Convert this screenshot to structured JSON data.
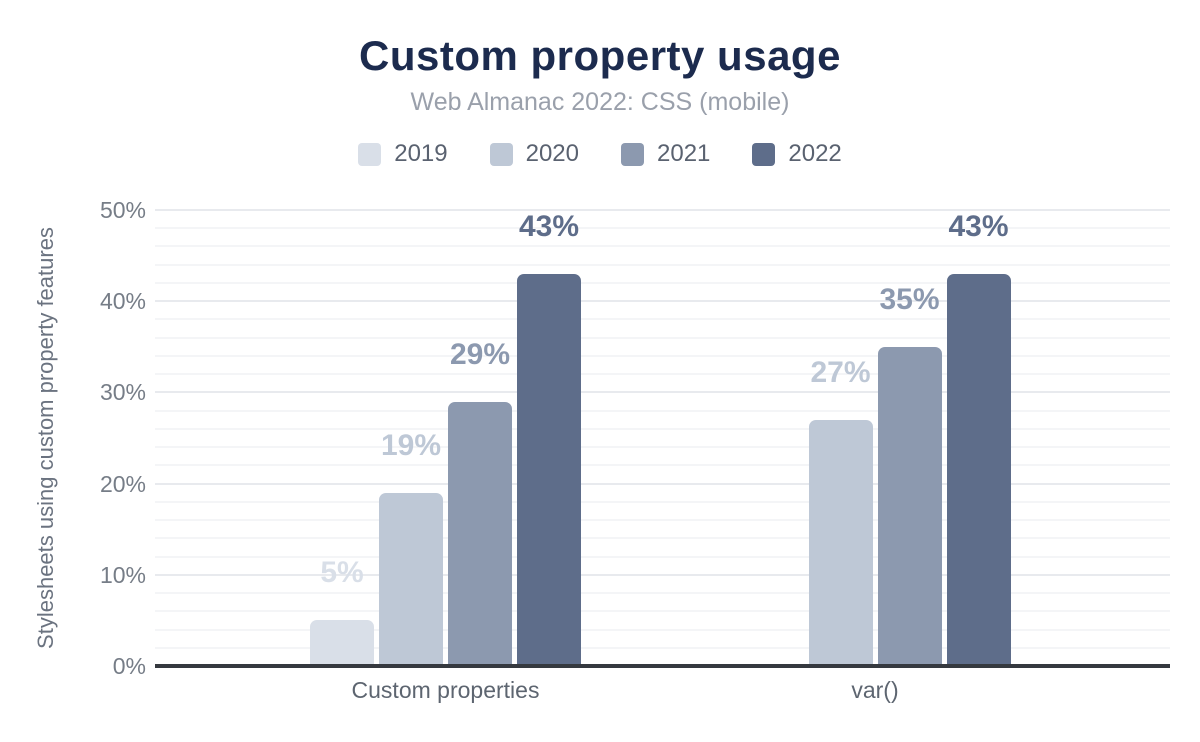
{
  "chart_data": {
    "type": "bar",
    "title": "Custom property usage",
    "subtitle": "Web Almanac 2022: CSS (mobile)",
    "ylabel": "Stylesheets using custom property features",
    "xlabel": "",
    "ylim": [
      0,
      50
    ],
    "y_major_ticks": [
      {
        "value": 0,
        "label": "0%"
      },
      {
        "value": 10,
        "label": "10%"
      },
      {
        "value": 20,
        "label": "20%"
      },
      {
        "value": 30,
        "label": "30%"
      },
      {
        "value": 40,
        "label": "40%"
      },
      {
        "value": 50,
        "label": "50%"
      }
    ],
    "minor_grid_step": 2,
    "grid": true,
    "legend_position": "top",
    "categories": [
      "Custom properties",
      "var()"
    ],
    "series": [
      {
        "name": "2019",
        "color": "#d9dfe8",
        "values": [
          5,
          null
        ],
        "labels": [
          "5%",
          null
        ]
      },
      {
        "name": "2020",
        "color": "#bec8d6",
        "values": [
          19,
          27
        ],
        "labels": [
          "19%",
          "27%"
        ]
      },
      {
        "name": "2021",
        "color": "#8c99af",
        "values": [
          29,
          35
        ],
        "labels": [
          "29%",
          "35%"
        ]
      },
      {
        "name": "2022",
        "color": "#5e6d8a",
        "values": [
          43,
          43
        ],
        "labels": [
          "43%",
          "43%"
        ]
      }
    ]
  },
  "colors": {
    "title_text": "#1c2b4e",
    "subtitle_text": "#9aa0ab",
    "legend_text": "#5a6270",
    "tick_text": "#767d87",
    "category_text": "#5d6570",
    "ylabel_text": "#6b7380",
    "axis_line": "#35393f",
    "grid_major": "#e8eaee",
    "grid_minor": "#f4f5f7",
    "background": "#ffffff"
  }
}
